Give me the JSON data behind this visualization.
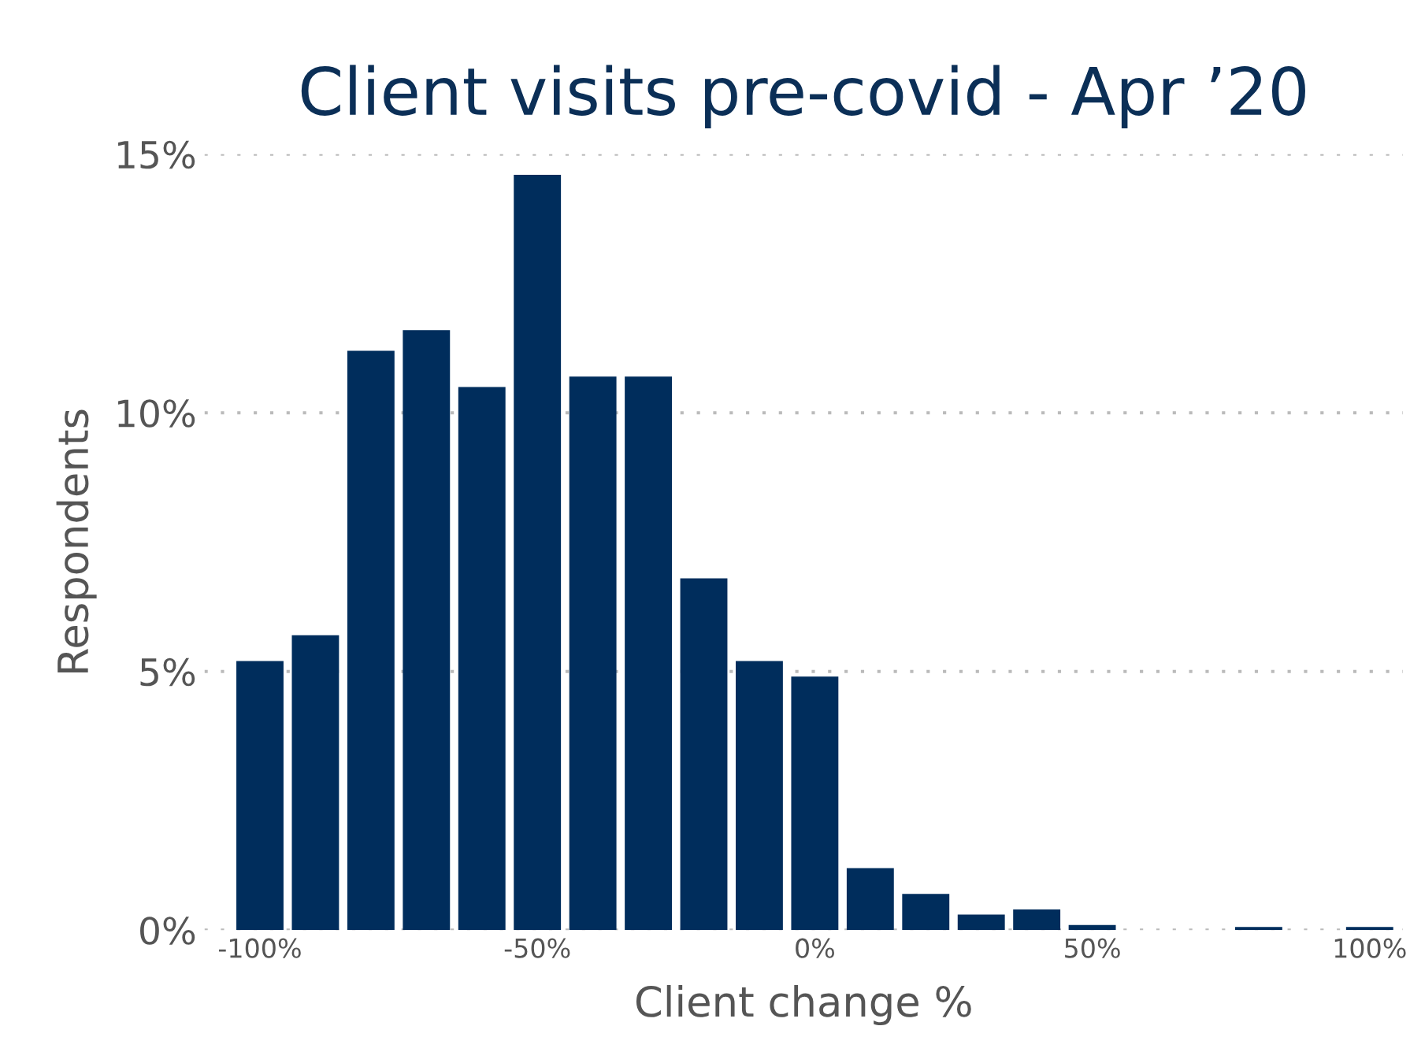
{
  "chart_data": {
    "type": "bar",
    "title": "Client visits pre-covid - Apr ’20",
    "xlabel": "Client change %",
    "ylabel": "Respondents",
    "x": [
      -100,
      -90,
      -80,
      -70,
      -60,
      -50,
      -40,
      -30,
      -20,
      -10,
      0,
      10,
      20,
      30,
      40,
      50,
      60,
      70,
      80,
      90,
      100
    ],
    "series": [
      {
        "color": "#002d5c",
        "values": [
          5.2,
          5.7,
          11.2,
          11.6,
          10.5,
          14.6,
          10.7,
          10.7,
          6.8,
          5.2,
          4.9,
          1.2,
          0.7,
          0.3,
          0.4,
          0.1,
          0,
          0,
          0.06,
          0,
          0.06
        ]
      }
    ],
    "xlim": [
      -110,
      106
    ],
    "ylim": [
      0,
      15
    ],
    "xticks": [
      {
        "value": -100,
        "label": "-100%"
      },
      {
        "value": -50,
        "label": "-50%"
      },
      {
        "value": 0,
        "label": "0%"
      },
      {
        "value": 50,
        "label": "50%"
      },
      {
        "value": 100,
        "label": "100%"
      }
    ],
    "yticks": [
      {
        "value": 0,
        "label": "0%"
      },
      {
        "value": 5,
        "label": "5%"
      },
      {
        "value": 10,
        "label": "10%"
      },
      {
        "value": 15,
        "label": "15%"
      }
    ],
    "grid": "y",
    "legend": false
  }
}
